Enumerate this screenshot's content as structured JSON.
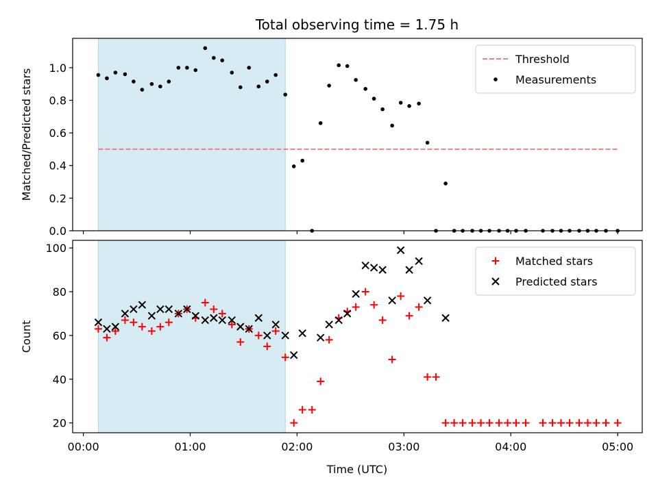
{
  "chart_data": {
    "type": "scatter",
    "title": "Total observing time = 1.75 h",
    "xlabel": "Time (UTC)",
    "x_unit": "hours_utc",
    "xlim": [
      -0.1,
      5.23
    ],
    "xticks": [
      0,
      1,
      2,
      3,
      4,
      5
    ],
    "xtick_labels": [
      "00:00",
      "01:00",
      "02:00",
      "03:00",
      "04:00",
      "05:00"
    ],
    "highlight_span": [
      0.14,
      1.89
    ],
    "panels": [
      {
        "ylabel": "Matched/Predicted stars",
        "ylim": [
          0,
          1.18
        ],
        "yticks": [
          0,
          0.2,
          0.4,
          0.6,
          0.8,
          1.0
        ],
        "ytick_labels": [
          "0.0",
          "0.2",
          "0.4",
          "0.6",
          "0.8",
          "1.0"
        ],
        "threshold": {
          "name": "Threshold",
          "value": 0.5,
          "x_range": [
            0.14,
            5.0
          ],
          "color": "#f08080"
        },
        "legend_position": "top-right",
        "series": [
          {
            "name": "Measurements",
            "marker": "dot",
            "color": "#000000",
            "points": [
              [
                0.14,
                0.955
              ],
              [
                0.22,
                0.935
              ],
              [
                0.3,
                0.97
              ],
              [
                0.39,
                0.96
              ],
              [
                0.47,
                0.915
              ],
              [
                0.55,
                0.865
              ],
              [
                0.64,
                0.9
              ],
              [
                0.72,
                0.885
              ],
              [
                0.8,
                0.915
              ],
              [
                0.89,
                1.0
              ],
              [
                0.97,
                1.0
              ],
              [
                1.05,
                0.985
              ],
              [
                1.14,
                1.12
              ],
              [
                1.22,
                1.06
              ],
              [
                1.3,
                1.045
              ],
              [
                1.39,
                0.97
              ],
              [
                1.47,
                0.88
              ],
              [
                1.55,
                1.0
              ],
              [
                1.64,
                0.885
              ],
              [
                1.72,
                0.915
              ],
              [
                1.8,
                0.955
              ],
              [
                1.89,
                0.835
              ],
              [
                1.97,
                0.395
              ],
              [
                2.05,
                0.43
              ],
              [
                2.14,
                0.0
              ],
              [
                2.22,
                0.66
              ],
              [
                2.3,
                0.89
              ],
              [
                2.39,
                1.015
              ],
              [
                2.47,
                1.01
              ],
              [
                2.55,
                0.925
              ],
              [
                2.64,
                0.87
              ],
              [
                2.72,
                0.81
              ],
              [
                2.8,
                0.745
              ],
              [
                2.89,
                0.645
              ],
              [
                2.97,
                0.785
              ],
              [
                3.05,
                0.765
              ],
              [
                3.14,
                0.78
              ],
              [
                3.22,
                0.54
              ],
              [
                3.3,
                0.0
              ],
              [
                3.39,
                0.29
              ],
              [
                3.47,
                0.0
              ],
              [
                3.55,
                0.0
              ],
              [
                3.64,
                0.0
              ],
              [
                3.72,
                0.0
              ],
              [
                3.8,
                0.0
              ],
              [
                3.89,
                0.0
              ],
              [
                3.97,
                0.0
              ],
              [
                4.05,
                0.0
              ],
              [
                4.14,
                0.0
              ],
              [
                4.3,
                0.0
              ],
              [
                4.39,
                0.0
              ],
              [
                4.47,
                0.0
              ],
              [
                4.55,
                0.0
              ],
              [
                4.64,
                0.0
              ],
              [
                4.72,
                0.0
              ],
              [
                4.8,
                0.0
              ],
              [
                4.89,
                0.0
              ],
              [
                5.0,
                0.0
              ]
            ]
          }
        ]
      },
      {
        "ylabel": "Count",
        "ylim": [
          15.5,
          103.5
        ],
        "yticks": [
          20,
          40,
          60,
          80,
          100
        ],
        "ytick_labels": [
          "20",
          "40",
          "60",
          "80",
          "100"
        ],
        "legend_position": "top-right",
        "series": [
          {
            "name": "Matched stars",
            "marker": "plus",
            "color": "#ff0000",
            "points": [
              [
                0.14,
                63
              ],
              [
                0.22,
                59
              ],
              [
                0.3,
                62
              ],
              [
                0.39,
                67
              ],
              [
                0.47,
                66
              ],
              [
                0.55,
                64
              ],
              [
                0.64,
                62
              ],
              [
                0.72,
                64
              ],
              [
                0.8,
                66
              ],
              [
                0.89,
                70
              ],
              [
                0.97,
                72
              ],
              [
                1.05,
                68
              ],
              [
                1.14,
                75
              ],
              [
                1.22,
                72
              ],
              [
                1.3,
                70
              ],
              [
                1.39,
                65
              ],
              [
                1.47,
                57
              ],
              [
                1.55,
                63
              ],
              [
                1.64,
                60
              ],
              [
                1.72,
                55
              ],
              [
                1.8,
                62
              ],
              [
                1.89,
                50
              ],
              [
                1.97,
                20
              ],
              [
                2.05,
                26
              ],
              [
                2.14,
                26
              ],
              [
                2.22,
                39
              ],
              [
                2.3,
                58
              ],
              [
                2.39,
                68
              ],
              [
                2.47,
                71
              ],
              [
                2.55,
                73
              ],
              [
                2.64,
                80
              ],
              [
                2.72,
                74
              ],
              [
                2.8,
                67
              ],
              [
                2.89,
                49
              ],
              [
                2.97,
                78
              ],
              [
                3.05,
                69
              ],
              [
                3.14,
                73
              ],
              [
                3.22,
                41
              ],
              [
                3.3,
                41
              ],
              [
                3.39,
                20
              ],
              [
                3.47,
                20
              ],
              [
                3.55,
                20
              ],
              [
                3.64,
                20
              ],
              [
                3.72,
                20
              ],
              [
                3.8,
                20
              ],
              [
                3.89,
                20
              ],
              [
                3.97,
                20
              ],
              [
                4.05,
                20
              ],
              [
                4.14,
                20
              ],
              [
                4.3,
                20
              ],
              [
                4.39,
                20
              ],
              [
                4.47,
                20
              ],
              [
                4.55,
                20
              ],
              [
                4.64,
                20
              ],
              [
                4.72,
                20
              ],
              [
                4.8,
                20
              ],
              [
                4.89,
                20
              ],
              [
                5.0,
                20
              ]
            ]
          },
          {
            "name": "Predicted stars",
            "marker": "x",
            "color": "#000000",
            "points": [
              [
                0.14,
                66
              ],
              [
                0.22,
                63
              ],
              [
                0.3,
                64
              ],
              [
                0.39,
                70
              ],
              [
                0.47,
                72
              ],
              [
                0.55,
                74
              ],
              [
                0.64,
                69
              ],
              [
                0.72,
                72
              ],
              [
                0.8,
                72
              ],
              [
                0.89,
                70
              ],
              [
                0.97,
                72
              ],
              [
                1.05,
                69
              ],
              [
                1.14,
                67
              ],
              [
                1.22,
                68
              ],
              [
                1.3,
                67
              ],
              [
                1.39,
                67
              ],
              [
                1.47,
                64
              ],
              [
                1.55,
                63
              ],
              [
                1.64,
                68
              ],
              [
                1.72,
                60
              ],
              [
                1.8,
                65
              ],
              [
                1.89,
                60
              ],
              [
                1.97,
                51
              ],
              [
                2.05,
                61
              ],
              [
                2.22,
                59
              ],
              [
                2.3,
                65
              ],
              [
                2.39,
                67
              ],
              [
                2.47,
                70
              ],
              [
                2.55,
                79
              ],
              [
                2.64,
                92
              ],
              [
                2.72,
                91
              ],
              [
                2.8,
                90
              ],
              [
                2.89,
                76
              ],
              [
                2.97,
                99
              ],
              [
                3.05,
                90
              ],
              [
                3.14,
                94
              ],
              [
                3.22,
                76
              ],
              [
                3.39,
                68
              ]
            ]
          }
        ]
      }
    ]
  }
}
